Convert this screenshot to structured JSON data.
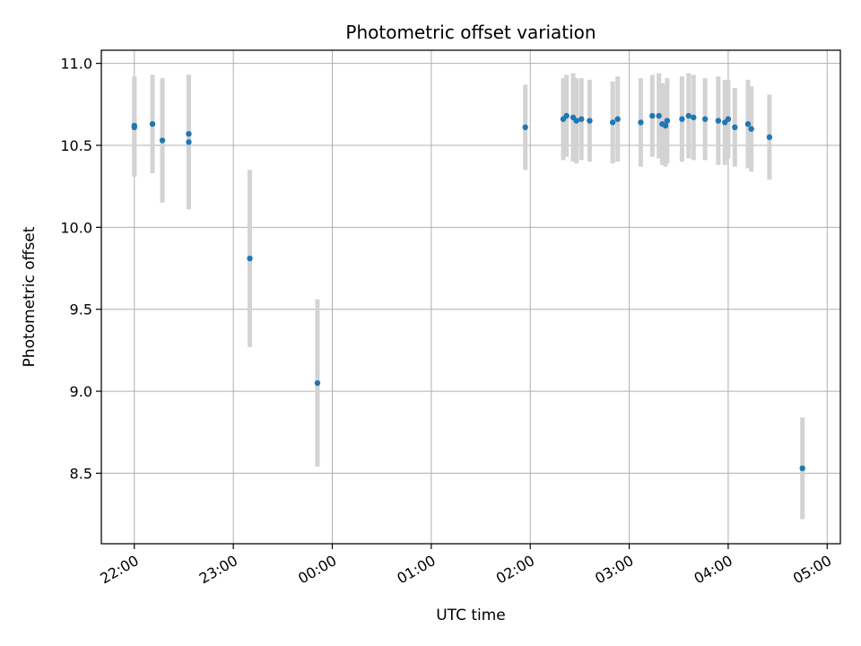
{
  "chart_data": {
    "type": "scatter",
    "title": "Photometric offset variation",
    "xlabel": "UTC time",
    "ylabel": "Photometric offset",
    "x_tick_labels": [
      "22:00",
      "23:00",
      "00:00",
      "01:00",
      "02:00",
      "03:00",
      "04:00",
      "05:00"
    ],
    "y_tick_labels": [
      "8.5",
      "9.0",
      "9.5",
      "10.0",
      "10.5",
      "11.0"
    ],
    "y_ticks": [
      8.5,
      9.0,
      9.5,
      10.0,
      10.5,
      11.0
    ],
    "xlim": [
      "21:40",
      "05:08"
    ],
    "ylim": [
      8.07,
      11.08
    ],
    "grid": true,
    "x_tick_label_rotation_deg": 30,
    "colors": {
      "points": "#1f77b4",
      "error_bars": "#d3d3d3",
      "grid": "#b0b0b0"
    },
    "series": [
      {
        "points": [
          {
            "x": "22:00",
            "y": 10.61,
            "yerr": 0.3
          },
          {
            "x": "22:00",
            "y": 10.62,
            "yerr": 0.3
          },
          {
            "x": "22:11",
            "y": 10.63,
            "yerr": 0.3
          },
          {
            "x": "22:17",
            "y": 10.53,
            "yerr": 0.38
          },
          {
            "x": "22:33",
            "y": 10.57,
            "yerr": 0.36
          },
          {
            "x": "22:33",
            "y": 10.52,
            "yerr": 0.41
          },
          {
            "x": "23:10",
            "y": 9.81,
            "yerr": 0.54
          },
          {
            "x": "23:51",
            "y": 9.05,
            "yerr": 0.51
          },
          {
            "x": "01:57",
            "y": 10.61,
            "yerr": 0.26
          },
          {
            "x": "02:20",
            "y": 10.66,
            "yerr": 0.25
          },
          {
            "x": "02:22",
            "y": 10.68,
            "yerr": 0.25
          },
          {
            "x": "02:26",
            "y": 10.67,
            "yerr": 0.27
          },
          {
            "x": "02:28",
            "y": 10.65,
            "yerr": 0.26
          },
          {
            "x": "02:31",
            "y": 10.66,
            "yerr": 0.25
          },
          {
            "x": "02:36",
            "y": 10.65,
            "yerr": 0.25
          },
          {
            "x": "02:50",
            "y": 10.64,
            "yerr": 0.25
          },
          {
            "x": "02:53",
            "y": 10.66,
            "yerr": 0.26
          },
          {
            "x": "03:07",
            "y": 10.64,
            "yerr": 0.27
          },
          {
            "x": "03:14",
            "y": 10.68,
            "yerr": 0.25
          },
          {
            "x": "03:18",
            "y": 10.68,
            "yerr": 0.26
          },
          {
            "x": "03:20",
            "y": 10.63,
            "yerr": 0.25
          },
          {
            "x": "03:22",
            "y": 10.62,
            "yerr": 0.25
          },
          {
            "x": "03:23",
            "y": 10.65,
            "yerr": 0.26
          },
          {
            "x": "03:32",
            "y": 10.66,
            "yerr": 0.26
          },
          {
            "x": "03:36",
            "y": 10.68,
            "yerr": 0.26
          },
          {
            "x": "03:39",
            "y": 10.67,
            "yerr": 0.26
          },
          {
            "x": "03:46",
            "y": 10.66,
            "yerr": 0.25
          },
          {
            "x": "03:54",
            "y": 10.65,
            "yerr": 0.27
          },
          {
            "x": "03:58",
            "y": 10.64,
            "yerr": 0.26
          },
          {
            "x": "04:00",
            "y": 10.66,
            "yerr": 0.24
          },
          {
            "x": "04:04",
            "y": 10.61,
            "yerr": 0.24
          },
          {
            "x": "04:12",
            "y": 10.63,
            "yerr": 0.27
          },
          {
            "x": "04:14",
            "y": 10.6,
            "yerr": 0.26
          },
          {
            "x": "04:25",
            "y": 10.55,
            "yerr": 0.26
          },
          {
            "x": "04:45",
            "y": 8.53,
            "yerr": 0.31
          }
        ]
      }
    ]
  }
}
